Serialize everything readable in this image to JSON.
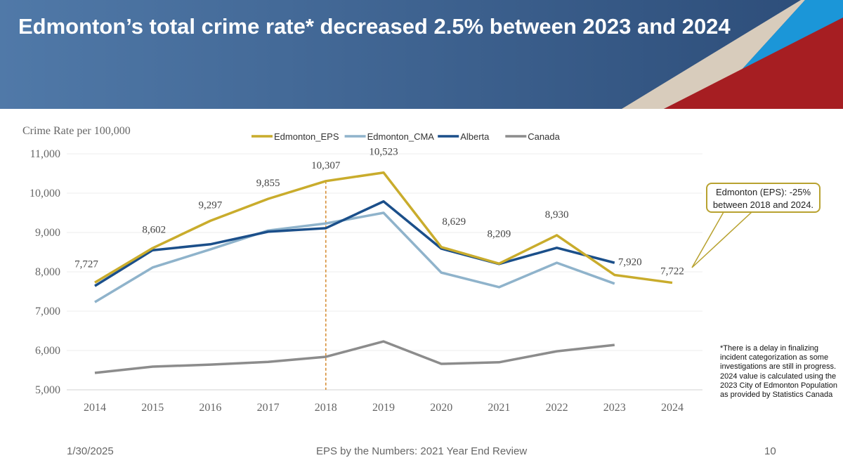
{
  "header": {
    "title": "Edmonton’s total crime rate* decreased 2.5% between 2023 and 2024"
  },
  "chart_data": {
    "type": "line",
    "ylabel": "Crime Rate per 100,000",
    "ylim": [
      5000,
      11000
    ],
    "yticks": [
      "5,000",
      "6,000",
      "7,000",
      "8,000",
      "9,000",
      "10,000",
      "11,000"
    ],
    "grid": true,
    "legend": "top",
    "categories": [
      "2014",
      "2015",
      "2016",
      "2017",
      "2018",
      "2019",
      "2020",
      "2021",
      "2022",
      "2023",
      "2024"
    ],
    "series": [
      {
        "name": "Edmonton_EPS",
        "color": "#c9ac2c",
        "values": [
          7727,
          8602,
          9297,
          9855,
          10307,
          10523,
          8629,
          8209,
          8930,
          7920,
          7722
        ],
        "labels": [
          "7,727",
          "8,602",
          "9,297",
          "9,855",
          "10,307",
          "10,523",
          "8,629",
          "8,209",
          "8,930",
          "7,920",
          "7,722"
        ]
      },
      {
        "name": "Edmonton_CMA",
        "color": "#8fb3cb",
        "values": [
          7230,
          8110,
          8570,
          9050,
          9230,
          9500,
          7980,
          7610,
          8230,
          7700,
          null
        ]
      },
      {
        "name": "Alberta",
        "color": "#1b4f8a",
        "values": [
          7640,
          8550,
          8700,
          9020,
          9110,
          9790,
          8590,
          8200,
          8610,
          8230,
          null
        ]
      },
      {
        "name": "Canada",
        "color": "#8c8c8c",
        "values": [
          5430,
          5590,
          5640,
          5710,
          5840,
          6230,
          5660,
          5700,
          5980,
          6140,
          null
        ]
      }
    ],
    "reference_line": {
      "x": "2018",
      "color": "#d4892c",
      "style": "dashed"
    },
    "annotation": "Edmonton (EPS): -25% between 2018 and 2024."
  },
  "notes": [
    "*There is a delay in finalizing incident categorization as some investigations are still in progress.",
    "2024 value is calculated using the 2023 City of Edmonton Population as provided by Statistics Canada"
  ],
  "footer": {
    "date": "1/30/2025",
    "center": "EPS by the Numbers: 2021 Year End Review",
    "page": "10"
  },
  "colors": {
    "banner": "#3f6a98",
    "beige": "#d8ccbc",
    "blue": "#1b96d8",
    "red": "#a61e22"
  }
}
